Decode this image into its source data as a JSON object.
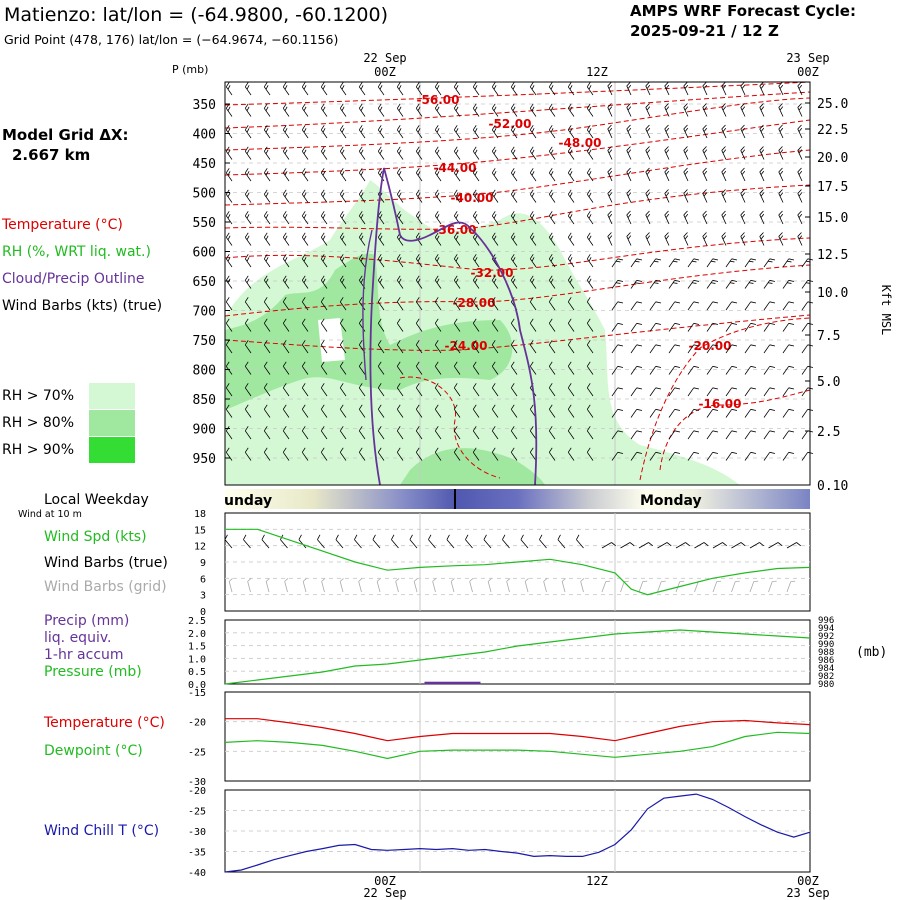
{
  "header": {
    "title": "Matienzo:  lat/lon = (-64.9800, -60.1200)",
    "grid_point": "Grid Point (478, 176) lat/lon = (−64.9674, −60.1156)",
    "cycle_label": "AMPS WRF Forecast Cycle:",
    "cycle_value": "2025-09-21 / 12  Z"
  },
  "model_grid": {
    "label": "Model Grid ΔX:",
    "value": "2.667 km"
  },
  "time_axis": {
    "top_dates": [
      "22 Sep",
      "23 Sep"
    ],
    "ticks": [
      "00Z",
      "12Z",
      "00Z"
    ],
    "bottom_dates": [
      "22 Sep",
      "23 Sep"
    ]
  },
  "cross_section": {
    "pressure_axis_label": "P (mb)",
    "pressure_ticks": [
      "350",
      "400",
      "450",
      "500",
      "550",
      "600",
      "650",
      "700",
      "750",
      "800",
      "850",
      "900",
      "950"
    ],
    "height_axis_label": "Kft MSL",
    "height_ticks": [
      "25.0",
      "22.5",
      "20.0",
      "17.5",
      "15.0",
      "12.5",
      "10.0",
      "7.5",
      "5.0",
      "2.5",
      "0.10"
    ],
    "legend": {
      "temperature": "Temperature (°C)",
      "rh": "RH (%, WRT liq. wat.)",
      "cloud": "Cloud/Precip Outline",
      "wind": "Wind Barbs (kts) (true)"
    },
    "rh_legend": [
      "RH > 70%",
      "RH > 80%",
      "RH > 90%"
    ],
    "rh_colors": [
      "#d3f8d3",
      "#a0e8a0",
      "#33dd33"
    ],
    "isotherm_labels": [
      "-56.00",
      "-52.00",
      "-48.00",
      "-44.00",
      "-40.00",
      "-36.00",
      "-32.00",
      "-28.00",
      "-24.00",
      "-20.00",
      "-16.00"
    ]
  },
  "weekday_bar": {
    "label": "Local Weekday",
    "days": [
      "Sunday",
      "Monday"
    ],
    "visible_first": "unday"
  },
  "wind_panel": {
    "subtitle": "Wind at 10 m",
    "labels": [
      "Wind Spd (kts)",
      "Wind Barbs (true)",
      "Wind Barbs (grid)"
    ],
    "y_ticks": [
      "18",
      "15",
      "12",
      "9",
      "6",
      "3",
      "0"
    ]
  },
  "precip_panel": {
    "labels": [
      "Precip (mm)",
      "liq. equiv.",
      "1-hr accum",
      "Pressure (mb)"
    ],
    "left_ticks": [
      "2.5",
      "2.0",
      "1.5",
      "1.0",
      "0.5",
      "0.0"
    ],
    "right_ticks": [
      "996",
      "994",
      "992",
      "990",
      "988",
      "986",
      "984",
      "982",
      "980"
    ],
    "right_unit": "(mb)"
  },
  "temp_panel": {
    "labels": [
      "Temperature (°C)",
      "Dewpoint (°C)"
    ],
    "y_ticks": [
      "-15",
      "-20",
      "-25",
      "-30"
    ]
  },
  "chill_panel": {
    "labels": [
      "Wind Chill T (°C)"
    ],
    "y_ticks": [
      "-20",
      "-25",
      "-30",
      "-35",
      "-40"
    ]
  },
  "colors": {
    "temperature": "#dd0000",
    "rh": "#22bb22",
    "cloud": "#663399",
    "wind": "#000000",
    "grid_barb": "#aaaaaa",
    "chill": "#1a1aaa",
    "dewpoint": "#22bb22"
  },
  "chart_data": [
    {
      "type": "line",
      "name": "wind-speed",
      "x_hours": [
        -12,
        -10,
        -8,
        -6,
        -4,
        -2,
        0,
        2,
        4,
        6,
        8,
        10,
        12,
        13,
        14,
        16,
        18,
        20,
        22,
        24
      ],
      "values": [
        15,
        15,
        13,
        11,
        9,
        7.5,
        8,
        8.3,
        8.5,
        9,
        9.5,
        8.5,
        7,
        4,
        3,
        4.5,
        6,
        7,
        7.8,
        8
      ],
      "ylim": [
        0,
        18
      ]
    },
    {
      "type": "line",
      "name": "pressure",
      "x_hours": [
        -12,
        -10,
        -8,
        -6,
        -4,
        -2,
        0,
        2,
        4,
        6,
        8,
        10,
        12,
        14,
        16,
        18,
        20,
        22,
        24
      ],
      "values": [
        980,
        981,
        982,
        983,
        984.5,
        985,
        986,
        987,
        988,
        989.5,
        990.5,
        991.5,
        992.5,
        993,
        993.5,
        993,
        992.5,
        992,
        991.5
      ],
      "ylim": [
        980,
        996
      ]
    },
    {
      "type": "line",
      "name": "temperature",
      "x_hours": [
        -12,
        -10,
        -8,
        -6,
        -4,
        -2,
        0,
        2,
        4,
        6,
        8,
        10,
        12,
        14,
        16,
        18,
        20,
        22,
        24
      ],
      "values": [
        -19.5,
        -19.5,
        -20.2,
        -21,
        -22,
        -23.2,
        -22.5,
        -22,
        -22,
        -22,
        -22,
        -22.5,
        -23.2,
        -22,
        -20.8,
        -20,
        -19.8,
        -20.2,
        -20.5
      ],
      "ylim": [
        -30,
        -15
      ]
    },
    {
      "type": "line",
      "name": "dewpoint",
      "x_hours": [
        -12,
        -10,
        -8,
        -6,
        -4,
        -2,
        0,
        2,
        4,
        6,
        8,
        10,
        12,
        14,
        16,
        18,
        20,
        22,
        24
      ],
      "values": [
        -23.5,
        -23.2,
        -23.5,
        -24,
        -25,
        -26.2,
        -25,
        -24.8,
        -24.8,
        -24.8,
        -25,
        -25.5,
        -26,
        -25.5,
        -25,
        -24.2,
        -22.5,
        -21.8,
        -22
      ],
      "ylim": [
        -30,
        -15
      ]
    },
    {
      "type": "line",
      "name": "wind-chill",
      "x_hours": [
        -12,
        -11,
        -10,
        -9,
        -8,
        -7,
        -6,
        -5,
        -4,
        -3,
        -2,
        -1,
        0,
        1,
        2,
        3,
        4,
        5,
        6,
        7,
        8,
        9,
        10,
        11,
        12,
        13,
        14,
        15,
        16,
        17,
        18,
        19,
        20,
        21,
        22,
        23,
        24
      ],
      "values": [
        -40,
        -39.5,
        -38.3,
        -37,
        -36,
        -35,
        -34.3,
        -33.5,
        -33.3,
        -34.5,
        -34.7,
        -34.5,
        -34.3,
        -34.5,
        -34.3,
        -34.7,
        -34.5,
        -35,
        -35.4,
        -36.2,
        -36,
        -36.2,
        -36.2,
        -35.2,
        -33.3,
        -29.7,
        -24.6,
        -22,
        -21.5,
        -21,
        -22.3,
        -24.3,
        -26.5,
        -28.5,
        -30.3,
        -31.5,
        -30.3
      ],
      "ylim": [
        -40,
        -20
      ]
    },
    {
      "type": "bar",
      "name": "precip",
      "x_hours": [
        2
      ],
      "values": [
        0.05
      ],
      "ylim": [
        0,
        2.5
      ]
    }
  ]
}
